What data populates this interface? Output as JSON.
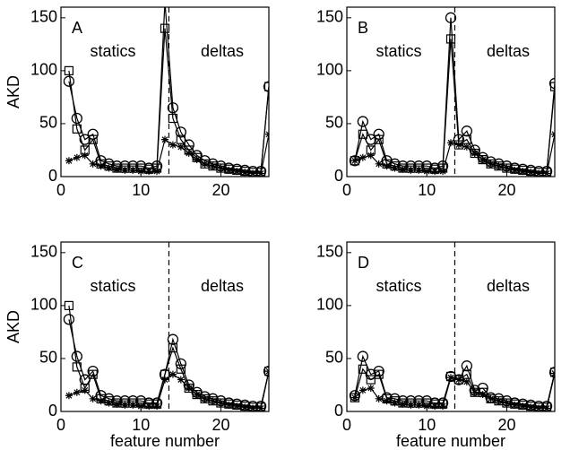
{
  "chart_data": [
    {
      "type": "line",
      "label": "A",
      "annotations": [
        "statics",
        "deltas"
      ],
      "ylabel": "AKD",
      "vline": 13.5,
      "x": [
        1,
        2,
        3,
        4,
        5,
        6,
        7,
        8,
        9,
        10,
        11,
        12,
        13,
        14,
        15,
        16,
        17,
        18,
        19,
        20,
        21,
        22,
        23,
        24,
        25,
        26
      ],
      "xlim": [
        0,
        26
      ],
      "xticks": [
        0,
        10,
        20
      ],
      "ylim": [
        0,
        160
      ],
      "yticks": [
        0,
        50,
        100,
        150
      ],
      "series": [
        {
          "color": "#000000",
          "marker": "o",
          "values": [
            90,
            55,
            35,
            40,
            15,
            12,
            10,
            10,
            10,
            10,
            8,
            10,
            165,
            65,
            42,
            30,
            20,
            15,
            12,
            10,
            8,
            7,
            6,
            5,
            5,
            85
          ]
        },
        {
          "color": "#000000",
          "marker": "s",
          "values": [
            100,
            45,
            25,
            35,
            12,
            10,
            8,
            8,
            8,
            8,
            7,
            8,
            140,
            55,
            35,
            25,
            18,
            12,
            10,
            8,
            7,
            6,
            5,
            4,
            4,
            85
          ]
        },
        {
          "color": "#000000",
          "marker": "*",
          "values": [
            15,
            18,
            20,
            12,
            10,
            8,
            7,
            6,
            6,
            5,
            5,
            5,
            35,
            30,
            28,
            22,
            16,
            12,
            10,
            8,
            6,
            5,
            4,
            3,
            3,
            40
          ]
        }
      ]
    },
    {
      "type": "line",
      "label": "B",
      "annotations": [
        "statics",
        "deltas"
      ],
      "vline": 13.5,
      "x": [
        1,
        2,
        3,
        4,
        5,
        6,
        7,
        8,
        9,
        10,
        11,
        12,
        13,
        14,
        15,
        16,
        17,
        18,
        19,
        20,
        21,
        22,
        23,
        24,
        25,
        26
      ],
      "xlim": [
        0,
        26
      ],
      "xticks": [
        0,
        10,
        20
      ],
      "ylim": [
        0,
        160
      ],
      "yticks": [
        0,
        50,
        100,
        150
      ],
      "series": [
        {
          "color": "#000000",
          "marker": "o",
          "values": [
            15,
            52,
            35,
            40,
            15,
            12,
            10,
            10,
            10,
            10,
            8,
            10,
            150,
            35,
            43,
            25,
            18,
            14,
            12,
            10,
            8,
            7,
            6,
            5,
            5,
            88
          ]
        },
        {
          "color": "#000000",
          "marker": "s",
          "values": [
            15,
            40,
            25,
            35,
            12,
            10,
            8,
            8,
            8,
            8,
            7,
            8,
            130,
            30,
            35,
            22,
            16,
            12,
            10,
            8,
            7,
            6,
            5,
            4,
            4,
            85
          ]
        },
        {
          "color": "#000000",
          "marker": "*",
          "values": [
            15,
            18,
            20,
            12,
            10,
            8,
            7,
            6,
            6,
            5,
            5,
            5,
            32,
            30,
            28,
            22,
            16,
            12,
            10,
            8,
            6,
            5,
            4,
            3,
            3,
            40
          ]
        }
      ]
    },
    {
      "type": "line",
      "label": "C",
      "annotations": [
        "statics",
        "deltas"
      ],
      "ylabel": "AKD",
      "xlabel": "feature number",
      "vline": 13.5,
      "x": [
        1,
        2,
        3,
        4,
        5,
        6,
        7,
        8,
        9,
        10,
        11,
        12,
        13,
        14,
        15,
        16,
        17,
        18,
        19,
        20,
        21,
        22,
        23,
        24,
        25,
        26
      ],
      "xlim": [
        0,
        26
      ],
      "xticks": [
        0,
        10,
        20
      ],
      "ylim": [
        0,
        160
      ],
      "yticks": [
        0,
        50,
        100,
        150
      ],
      "series": [
        {
          "color": "#000000",
          "marker": "o",
          "values": [
            87,
            52,
            30,
            38,
            15,
            12,
            10,
            10,
            10,
            10,
            8,
            8,
            35,
            68,
            45,
            25,
            18,
            14,
            12,
            10,
            8,
            7,
            6,
            5,
            5,
            38
          ]
        },
        {
          "color": "#000000",
          "marker": "s",
          "values": [
            100,
            42,
            22,
            35,
            12,
            10,
            8,
            8,
            8,
            8,
            7,
            7,
            35,
            60,
            40,
            22,
            16,
            12,
            10,
            8,
            7,
            6,
            5,
            4,
            4,
            38
          ]
        },
        {
          "color": "#000000",
          "marker": "*",
          "values": [
            15,
            18,
            20,
            12,
            10,
            8,
            7,
            6,
            6,
            5,
            5,
            5,
            30,
            35,
            30,
            22,
            16,
            12,
            10,
            8,
            6,
            5,
            4,
            3,
            3,
            38
          ]
        }
      ]
    },
    {
      "type": "line",
      "label": "D",
      "annotations": [
        "statics",
        "deltas"
      ],
      "xlabel": "feature number",
      "vline": 13.5,
      "x": [
        1,
        2,
        3,
        4,
        5,
        6,
        7,
        8,
        9,
        10,
        11,
        12,
        13,
        14,
        15,
        16,
        17,
        18,
        19,
        20,
        21,
        22,
        23,
        24,
        25,
        26
      ],
      "xlim": [
        0,
        26
      ],
      "xticks": [
        0,
        10,
        20
      ],
      "ylim": [
        0,
        160
      ],
      "yticks": [
        0,
        50,
        100,
        150
      ],
      "series": [
        {
          "color": "#000000",
          "marker": "o",
          "values": [
            15,
            52,
            35,
            38,
            13,
            12,
            10,
            10,
            10,
            10,
            8,
            8,
            33,
            30,
            43,
            20,
            22,
            13,
            12,
            10,
            8,
            7,
            6,
            5,
            5,
            37
          ]
        },
        {
          "color": "#000000",
          "marker": "s",
          "values": [
            13,
            40,
            30,
            35,
            12,
            10,
            8,
            8,
            8,
            8,
            7,
            7,
            33,
            30,
            35,
            18,
            18,
            12,
            10,
            8,
            7,
            6,
            5,
            4,
            4,
            37
          ]
        },
        {
          "color": "#000000",
          "marker": "*",
          "values": [
            13,
            20,
            22,
            12,
            10,
            8,
            7,
            6,
            6,
            5,
            5,
            5,
            32,
            30,
            28,
            18,
            16,
            12,
            10,
            8,
            6,
            5,
            4,
            3,
            3,
            36
          ]
        }
      ]
    }
  ]
}
